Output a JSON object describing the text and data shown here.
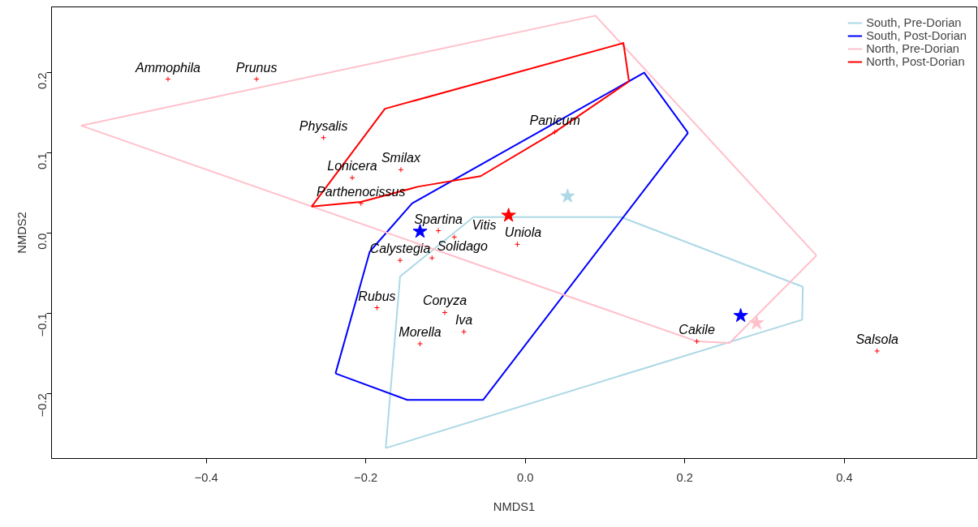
{
  "chart_data": {
    "type": "scatter",
    "xlabel": "NMDS1",
    "ylabel": "NMDS2",
    "xlim": [
      -0.594,
      0.566
    ],
    "ylim": [
      -0.281,
      0.282
    ],
    "xticks": [
      -0.4,
      -0.2,
      {
        "value": 0,
        "label": "0.0"
      },
      0.2,
      0.4
    ],
    "yticks": [
      -0.2,
      -0.1,
      {
        "value": 0,
        "label": "0.0"
      },
      0.1,
      0.2
    ],
    "grid": false,
    "legend": "top right",
    "series": [
      {
        "name": "South, Pre-Dorian",
        "type": "line",
        "color": "#add8e6",
        "x": [
          -0.175,
          -0.157,
          -0.065,
          0.12,
          0.348
        ],
        "values": [
          -0.268,
          -0.054,
          0.02,
          0.02,
          -0.067
        ]
      },
      {
        "type": "line",
        "color": "#add8e6",
        "x": [
          -0.175,
          0.347,
          0.348
        ],
        "values": [
          -0.268,
          -0.108,
          -0.067
        ]
      },
      {
        "name": "South, Post-Dorian",
        "type": "line",
        "color": "#0000ff",
        "x": [
          -0.238,
          -0.195,
          -0.142,
          0.149,
          0.204
        ],
        "values": [
          -0.175,
          -0.023,
          0.037,
          0.2,
          0.125
        ]
      },
      {
        "type": "line",
        "color": "#0000ff",
        "x": [
          -0.238,
          -0.148,
          -0.053,
          0.204
        ],
        "values": [
          -0.175,
          -0.208,
          -0.208,
          0.125
        ]
      },
      {
        "name": "North, Pre-Dorian",
        "type": "line",
        "color": "#ffc0cb",
        "x": [
          -0.557,
          0.088,
          0.365
        ],
        "values": [
          0.134,
          0.271,
          -0.028
        ]
      },
      {
        "type": "line",
        "color": "#ffc0cb",
        "x": [
          -0.557,
          0.215,
          0.256,
          0.365
        ],
        "values": [
          0.134,
          -0.135,
          -0.137,
          -0.028
        ]
      },
      {
        "name": "North, Post-Dorian",
        "type": "line",
        "color": "#ff0000",
        "x": [
          -0.268,
          -0.176,
          0.123,
          0.13
        ],
        "values": [
          0.033,
          0.155,
          0.237,
          0.189
        ]
      },
      {
        "type": "line",
        "color": "#ff0000",
        "x": [
          -0.268,
          -0.206,
          -0.134,
          -0.056,
          0.037,
          0.13
        ],
        "values": [
          0.033,
          0.039,
          0.058,
          0.071,
          0.126,
          0.189
        ]
      },
      {
        "marker": "cross",
        "color": "#ff0000",
        "x": [
          -0.448,
          -0.337,
          -0.253,
          -0.217,
          -0.206,
          -0.156,
          0.037,
          -0.109,
          -0.089,
          -0.01,
          -0.157,
          -0.117,
          -0.186,
          -0.101,
          -0.077,
          -0.132,
          0.215,
          0.441
        ],
        "values": [
          0.192,
          0.192,
          0.119,
          0.069,
          0.037,
          0.079,
          0.126,
          0.003,
          -0.005,
          -0.014,
          -0.034,
          -0.031,
          -0.093,
          -0.099,
          -0.123,
          -0.138,
          -0.135,
          -0.147
        ]
      },
      {
        "marker": "star",
        "color": "#add8e6",
        "x": [
          0.053
        ],
        "values": [
          0.046
        ]
      },
      {
        "marker": "star",
        "color": "#0000ff",
        "x": [
          -0.132,
          0.27
        ],
        "values": [
          0.002,
          -0.103
        ]
      },
      {
        "marker": "star",
        "color": "#ffc0cb",
        "x": [
          0.29
        ],
        "values": [
          -0.112
        ]
      },
      {
        "marker": "star",
        "color": "#ff0000",
        "x": [
          -0.021
        ],
        "values": [
          0.022
        ]
      }
    ],
    "annotations": [
      {
        "text": "Ammophila",
        "x": -0.448,
        "y": 0.192
      },
      {
        "text": "Prunus",
        "x": -0.337,
        "y": 0.192
      },
      {
        "text": "Physalis",
        "x": -0.253,
        "y": 0.119
      },
      {
        "text": "Lonicera",
        "x": -0.217,
        "y": 0.069
      },
      {
        "text": "Parthenocissus",
        "x": -0.206,
        "y": 0.037
      },
      {
        "text": "Smilax",
        "x": -0.156,
        "y": 0.079
      },
      {
        "text": "Panicum",
        "x": 0.037,
        "y": 0.126
      },
      {
        "text": "Spartina",
        "x": -0.109,
        "y": 0.003
      },
      {
        "text": "Vitis",
        "x": -0.089,
        "y": -0.005
      },
      {
        "text": "Uniola",
        "x": -0.01,
        "y": -0.014
      },
      {
        "text": "Calystegia",
        "x": -0.157,
        "y": -0.034
      },
      {
        "text": "Solidago",
        "x": -0.117,
        "y": -0.031
      },
      {
        "text": "Rubus",
        "x": -0.186,
        "y": -0.093
      },
      {
        "text": "Conyza",
        "x": -0.101,
        "y": -0.099
      },
      {
        "text": "Iva",
        "x": -0.077,
        "y": -0.123
      },
      {
        "text": "Morella",
        "x": -0.132,
        "y": -0.138
      },
      {
        "text": "Cakile",
        "x": 0.215,
        "y": -0.135
      },
      {
        "text": "Salsola",
        "x": 0.441,
        "y": -0.147
      }
    ]
  }
}
